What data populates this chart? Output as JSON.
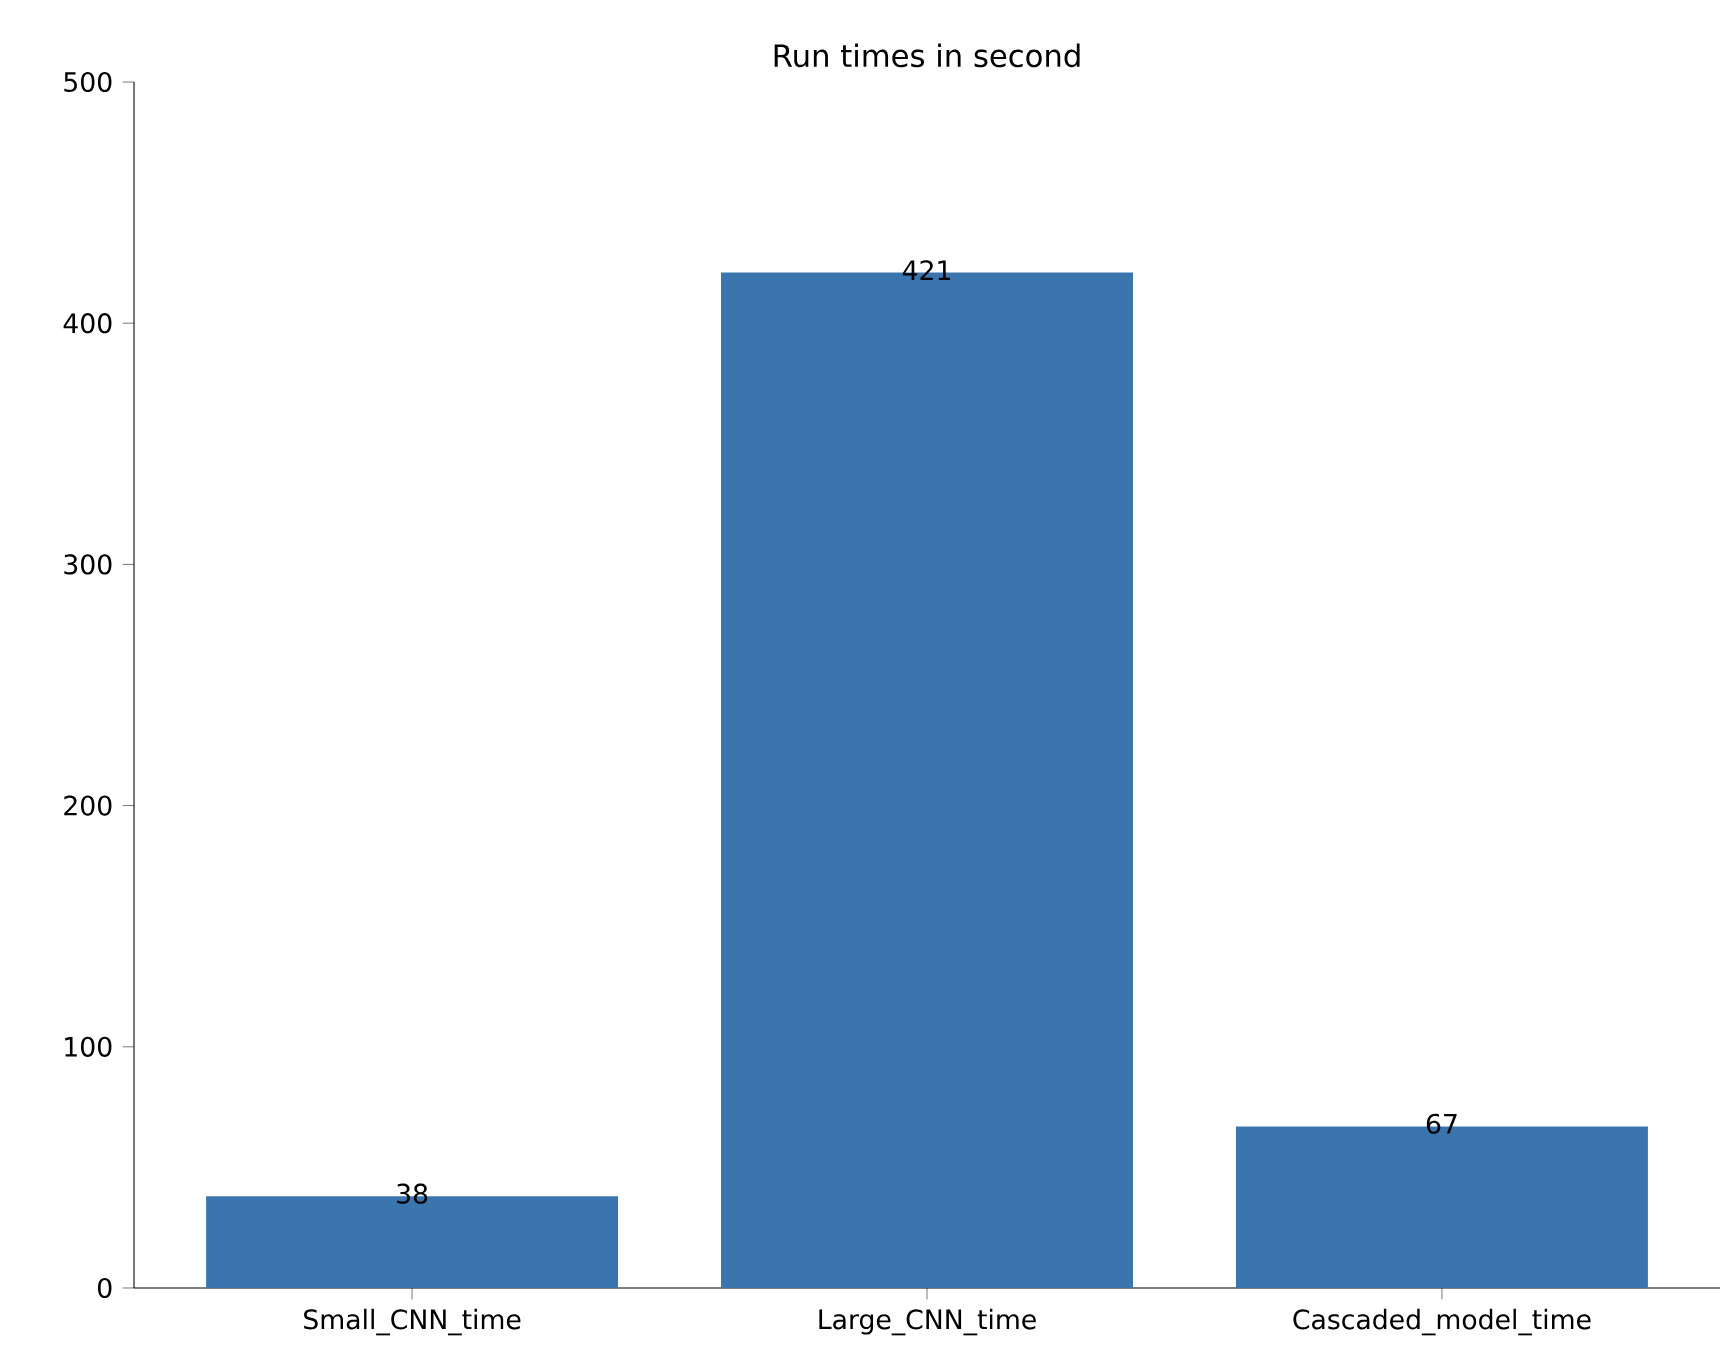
{
  "chart_data": {
    "type": "bar",
    "title": "Run times in second",
    "categories": [
      "Small_CNN_time",
      "Large_CNN_time",
      "Cascaded_model_time"
    ],
    "values": [
      38,
      421,
      67
    ],
    "color": "#3a75ae",
    "ylim": [
      0,
      500
    ],
    "yticks": [
      0,
      100,
      200,
      300,
      400,
      500
    ],
    "data_labels": true,
    "grid": false
  }
}
